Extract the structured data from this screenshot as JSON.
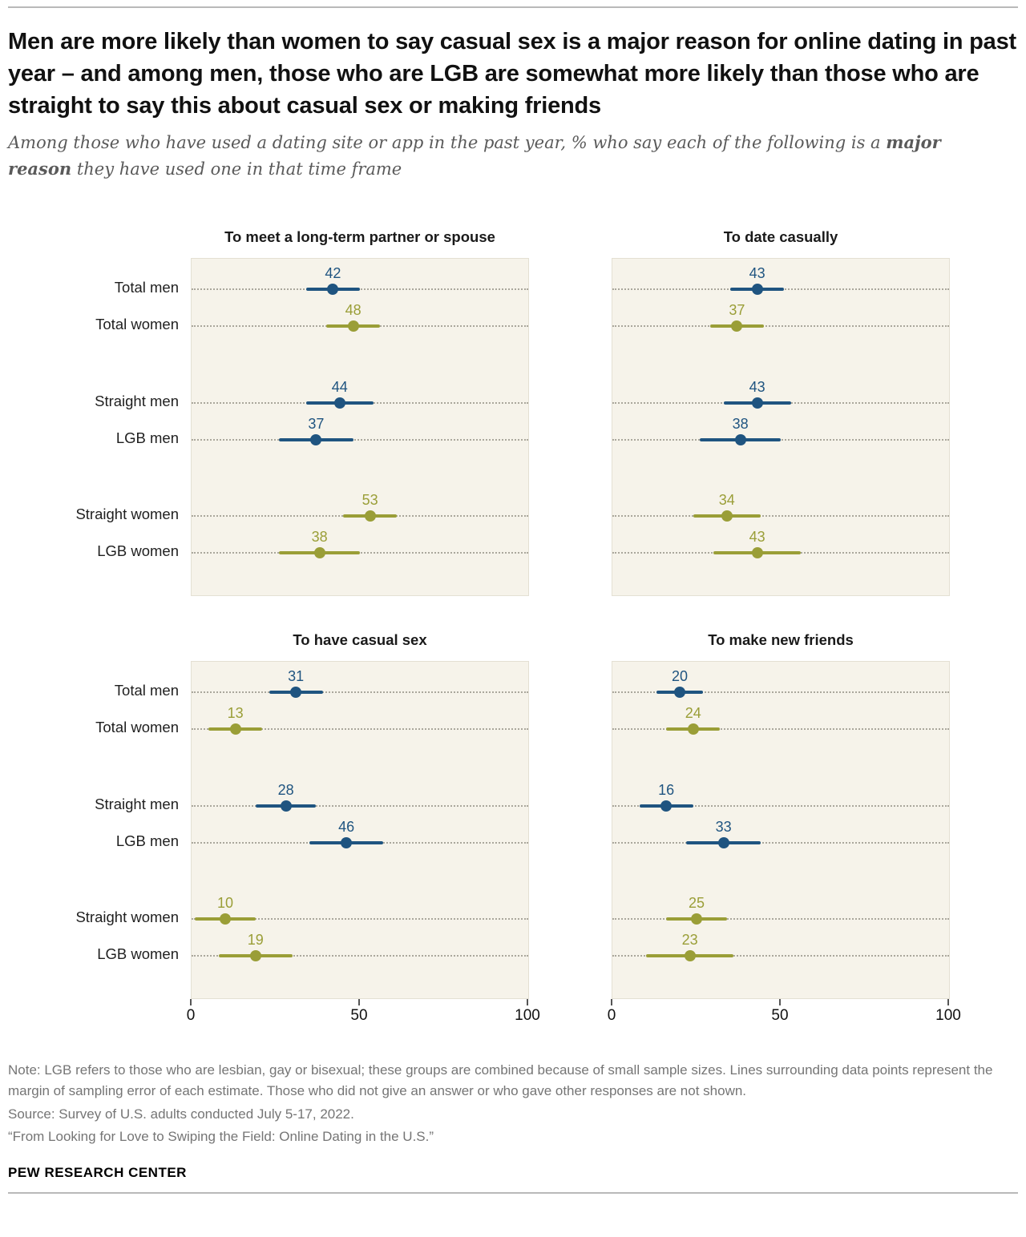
{
  "page": {
    "title": "Men are more likely than women to say casual sex is a major reason for online dating in past year – and among men, those who are LGB are somewhat more likely than those who are straight to say this about casual sex or making friends",
    "subtitle_prefix": "Among those who have used a dating site or app in the past year, % who say each of the following is a ",
    "subtitle_bold": "major reason",
    "subtitle_suffix": " they have used one in that time frame"
  },
  "colors": {
    "men": "#1F5480",
    "women": "#9A9E37",
    "plot_bg": "#F6F3EA"
  },
  "chart_data": [
    {
      "type": "scatter",
      "subtype": "dot-plot-with-error-bars",
      "title": "To meet a long-term partner or spouse",
      "categories": [
        "Total men",
        "Total women",
        "Straight men",
        "LGB men",
        "Straight women",
        "LGB women"
      ],
      "groups": [
        "men",
        "women",
        "men",
        "men",
        "women",
        "women"
      ],
      "values": [
        42,
        48,
        44,
        37,
        53,
        38
      ],
      "moe": [
        8,
        8,
        10,
        11,
        8,
        12
      ],
      "xlim": [
        0,
        100
      ],
      "ticks": [
        0,
        50,
        100
      ],
      "tick_labels": [
        "0",
        "50",
        "100"
      ],
      "show_axis": false
    },
    {
      "type": "scatter",
      "subtype": "dot-plot-with-error-bars",
      "title": "To date casually",
      "categories": [
        "Total men",
        "Total women",
        "Straight men",
        "LGB men",
        "Straight women",
        "LGB women"
      ],
      "groups": [
        "men",
        "women",
        "men",
        "men",
        "women",
        "women"
      ],
      "values": [
        43,
        37,
        43,
        38,
        34,
        43
      ],
      "moe": [
        8,
        8,
        10,
        12,
        10,
        13
      ],
      "xlim": [
        0,
        100
      ],
      "ticks": [
        0,
        50,
        100
      ],
      "tick_labels": [
        "0",
        "50",
        "100"
      ],
      "show_axis": false
    },
    {
      "type": "scatter",
      "subtype": "dot-plot-with-error-bars",
      "title": "To have casual sex",
      "categories": [
        "Total men",
        "Total women",
        "Straight men",
        "LGB men",
        "Straight women",
        "LGB women"
      ],
      "groups": [
        "men",
        "women",
        "men",
        "men",
        "women",
        "women"
      ],
      "values": [
        31,
        13,
        28,
        46,
        10,
        19
      ],
      "moe": [
        8,
        8,
        9,
        11,
        9,
        11
      ],
      "xlim": [
        0,
        100
      ],
      "ticks": [
        0,
        50,
        100
      ],
      "tick_labels": [
        "0",
        "50",
        "100"
      ],
      "show_axis": true
    },
    {
      "type": "scatter",
      "subtype": "dot-plot-with-error-bars",
      "title": "To make new friends",
      "categories": [
        "Total men",
        "Total women",
        "Straight men",
        "LGB men",
        "Straight women",
        "LGB women"
      ],
      "groups": [
        "men",
        "women",
        "men",
        "men",
        "women",
        "women"
      ],
      "values": [
        20,
        24,
        16,
        33,
        25,
        23
      ],
      "moe": [
        7,
        8,
        8,
        11,
        9,
        13
      ],
      "xlim": [
        0,
        100
      ],
      "ticks": [
        0,
        50,
        100
      ],
      "tick_labels": [
        "0",
        "50",
        "100"
      ],
      "show_axis": true
    }
  ],
  "notes": {
    "note": "Note: LGB refers to those who are lesbian, gay or bisexual; these groups are combined because of small sample sizes. Lines surrounding data points represent the margin of sampling error of each estimate. Those who did not give an answer or who gave other responses are not shown.",
    "source": "Source: Survey of U.S. adults conducted July 5-17, 2022.",
    "report": "“From Looking for Love to Swiping the Field: Online Dating in the U.S.”",
    "brand": "PEW RESEARCH CENTER"
  }
}
